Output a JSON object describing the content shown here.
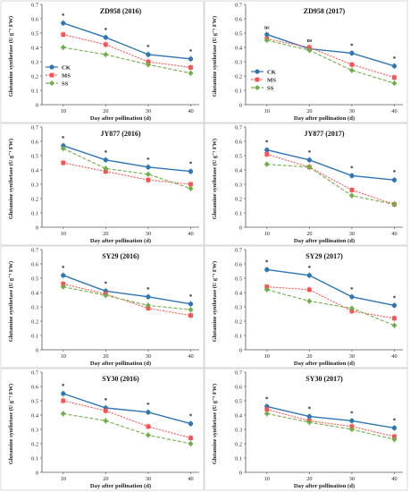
{
  "figure": {
    "series_names": [
      "CK",
      "MS",
      "SS"
    ],
    "colors": {
      "CK": "#2e75b6",
      "MS": "#ff5050",
      "SS": "#70ad47"
    },
    "ylabel": "Glutamine synthetase (U g⁻¹ FW)",
    "xlabel": "Day after pollination (d)",
    "x_ticks": [
      "10",
      "20",
      "30",
      "40"
    ],
    "y_ticks": [
      "0",
      "0.1",
      "0.2",
      "0.3",
      "0.4",
      "0.5",
      "0.6",
      "0.7"
    ]
  },
  "chart_data": [
    {
      "type": "line",
      "title": "ZD958 (2016)",
      "x": [
        10,
        20,
        30,
        40
      ],
      "ylim": [
        0,
        0.7
      ],
      "series": [
        {
          "name": "CK",
          "values": [
            0.57,
            0.47,
            0.35,
            0.32
          ]
        },
        {
          "name": "MS",
          "values": [
            0.49,
            0.42,
            0.3,
            0.26
          ]
        },
        {
          "name": "SS",
          "values": [
            0.4,
            0.35,
            0.28,
            0.22
          ]
        }
      ],
      "annotations": [
        "*",
        "*",
        "*",
        "*"
      ],
      "legend": "left"
    },
    {
      "type": "line",
      "title": "ZD958 (2017)",
      "x": [
        10,
        20,
        30,
        40
      ],
      "ylim": [
        0,
        0.7
      ],
      "series": [
        {
          "name": "CK",
          "values": [
            0.49,
            0.39,
            0.36,
            0.27
          ]
        },
        {
          "name": "MS",
          "values": [
            0.46,
            0.4,
            0.28,
            0.19
          ]
        },
        {
          "name": "SS",
          "values": [
            0.45,
            0.38,
            0.24,
            0.15
          ]
        }
      ],
      "annotations": [
        "ns",
        "ns",
        "*",
        "*"
      ],
      "legend": "bottom-left"
    },
    {
      "type": "line",
      "title": "JY877 (2016)",
      "x": [
        10,
        20,
        30,
        40
      ],
      "ylim": [
        0,
        0.7
      ],
      "series": [
        {
          "name": "CK",
          "values": [
            0.57,
            0.47,
            0.42,
            0.39
          ]
        },
        {
          "name": "MS",
          "values": [
            0.45,
            0.39,
            0.33,
            0.3
          ]
        },
        {
          "name": "SS",
          "values": [
            0.55,
            0.41,
            0.37,
            0.27
          ]
        }
      ],
      "annotations": [
        "*",
        "*",
        "*",
        "*"
      ]
    },
    {
      "type": "line",
      "title": "JY877 (2017)",
      "x": [
        10,
        20,
        30,
        40
      ],
      "ylim": [
        0,
        0.7
      ],
      "series": [
        {
          "name": "CK",
          "values": [
            0.54,
            0.47,
            0.36,
            0.33
          ]
        },
        {
          "name": "MS",
          "values": [
            0.51,
            0.42,
            0.26,
            0.16
          ]
        },
        {
          "name": "SS",
          "values": [
            0.44,
            0.42,
            0.22,
            0.16
          ]
        }
      ],
      "annotations": [
        "*",
        "*",
        "*",
        "*"
      ]
    },
    {
      "type": "line",
      "title": "SY29 (2016)",
      "x": [
        10,
        20,
        30,
        40
      ],
      "ylim": [
        0,
        0.7
      ],
      "series": [
        {
          "name": "CK",
          "values": [
            0.52,
            0.41,
            0.37,
            0.32
          ]
        },
        {
          "name": "MS",
          "values": [
            0.46,
            0.39,
            0.29,
            0.24
          ]
        },
        {
          "name": "SS",
          "values": [
            0.44,
            0.38,
            0.31,
            0.28
          ]
        }
      ],
      "annotations": [
        "*",
        "*",
        "*",
        "*"
      ]
    },
    {
      "type": "line",
      "title": "SY29 (2017)",
      "x": [
        10,
        20,
        30,
        40
      ],
      "ylim": [
        0,
        0.7
      ],
      "series": [
        {
          "name": "CK",
          "values": [
            0.56,
            0.52,
            0.37,
            0.31
          ]
        },
        {
          "name": "MS",
          "values": [
            0.44,
            0.42,
            0.27,
            0.22
          ]
        },
        {
          "name": "SS",
          "values": [
            0.42,
            0.34,
            0.29,
            0.17
          ]
        }
      ],
      "annotations": [
        "*",
        "*",
        "*",
        "*"
      ]
    },
    {
      "type": "line",
      "title": "SY30 (2016)",
      "x": [
        10,
        20,
        30,
        40
      ],
      "ylim": [
        0,
        0.7
      ],
      "series": [
        {
          "name": "CK",
          "values": [
            0.55,
            0.45,
            0.42,
            0.34
          ]
        },
        {
          "name": "MS",
          "values": [
            0.5,
            0.43,
            0.32,
            0.24
          ]
        },
        {
          "name": "SS",
          "values": [
            0.41,
            0.36,
            0.26,
            0.2
          ]
        }
      ],
      "annotations": [
        "*",
        "*",
        "*",
        "*"
      ]
    },
    {
      "type": "line",
      "title": "SY30 (2017)",
      "x": [
        10,
        20,
        30,
        40
      ],
      "ylim": [
        0,
        0.7
      ],
      "series": [
        {
          "name": "CK",
          "values": [
            0.46,
            0.39,
            0.36,
            0.31
          ]
        },
        {
          "name": "MS",
          "values": [
            0.44,
            0.36,
            0.32,
            0.25
          ]
        },
        {
          "name": "SS",
          "values": [
            0.41,
            0.35,
            0.3,
            0.23
          ]
        }
      ],
      "annotations": [
        "*",
        "*",
        "*",
        "*"
      ]
    }
  ]
}
